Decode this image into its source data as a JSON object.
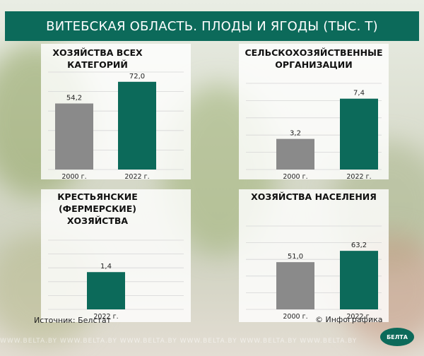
{
  "title": "ВИТЕБСКАЯ ОБЛАСТЬ. ПЛОДЫ И ЯГОДЫ (ТЫС. Т)",
  "colors": {
    "gray_bar": "#8a8a8a",
    "green_bar": "#0c6a5a",
    "title_bg": "#0c6a5a"
  },
  "chart_data": [
    {
      "type": "bar",
      "title": "ХОЗЯЙСТВА ВСЕХ\nКАТЕГОРИЙ",
      "categories": [
        "2000 г.",
        "2022 г."
      ],
      "values": [
        54.2,
        72.0
      ],
      "labels": [
        "54,2",
        "72,0"
      ],
      "ylim": [
        0,
        80
      ]
    },
    {
      "type": "bar",
      "title": "СЕЛЬСКОХОЗЯЙСТВЕННЫЕ\nОРГАНИЗАЦИИ",
      "categories": [
        "2000 г.",
        "2022 г."
      ],
      "values": [
        3.2,
        7.4
      ],
      "labels": [
        "3,2",
        "7,4"
      ],
      "ylim": [
        0,
        9
      ]
    },
    {
      "type": "bar",
      "title": "КРЕСТЬЯНСКИЕ\n(ФЕРМЕРСКИЕ)\nХОЗЯЙСТВА",
      "categories": [
        "2022 г."
      ],
      "values": [
        1.4
      ],
      "labels": [
        "1,4"
      ],
      "ylim": [
        0,
        2.6
      ]
    },
    {
      "type": "bar",
      "title": "ХОЗЯЙСТВА НАСЕЛЕНИЯ",
      "categories": [
        "2000 г.",
        "2022 г."
      ],
      "values": [
        51.0,
        63.2
      ],
      "labels": [
        "51,0",
        "63,2"
      ],
      "ylim": [
        0,
        90
      ]
    }
  ],
  "footer": {
    "source": "Источник: Белстат",
    "credit": "© Инфографика",
    "logo": "БЕЛТА"
  },
  "watermark": "WWW.BELTA.BY   WWW.BELTA.BY   WWW.BELTA.BY   WWW.BELTA.BY   WWW.BELTA.BY   WWW.BELTA.BY"
}
